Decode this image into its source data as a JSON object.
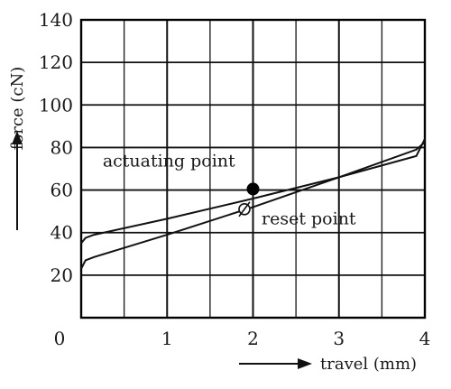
{
  "chart_data": {
    "type": "line",
    "xlabel": "travel (mm)",
    "ylabel": "force (cN)",
    "xlim": [
      0,
      4
    ],
    "ylim": [
      0,
      140
    ],
    "x_ticks": [
      0,
      1,
      2,
      3,
      4
    ],
    "y_ticks": [
      20,
      40,
      60,
      80,
      100,
      120,
      140
    ],
    "origin_label": "0",
    "grid": true,
    "grid_major_x": [
      0,
      1,
      2,
      3,
      4
    ],
    "grid_minor_x": [
      0.5,
      1.5,
      2.5,
      3.5
    ],
    "grid_major_y": [
      20,
      40,
      60,
      80,
      100,
      120,
      140
    ],
    "grid_minor_y": [],
    "series": [
      {
        "points": [
          [
            0,
            35
          ],
          [
            0.05,
            37.5
          ],
          [
            0.15,
            39
          ],
          [
            1,
            46.5
          ],
          [
            2,
            56
          ],
          [
            3,
            66
          ],
          [
            3.9,
            76
          ],
          [
            4,
            84
          ]
        ]
      },
      {
        "points": [
          [
            0,
            23
          ],
          [
            0.05,
            27
          ],
          [
            0.15,
            28.5
          ],
          [
            1,
            39
          ],
          [
            2,
            52
          ],
          [
            3,
            66
          ],
          [
            3.9,
            79
          ],
          [
            4,
            82.5
          ]
        ]
      }
    ],
    "markers": [
      {
        "x": 2,
        "y": 60.5,
        "style": "filled"
      },
      {
        "x": 1.9,
        "y": 51,
        "style": "open-slashed"
      }
    ],
    "annotations": [
      {
        "text": "actuating point",
        "x": 0.25,
        "y": 71
      },
      {
        "text": "reset point",
        "x": 2.1,
        "y": 44
      }
    ]
  }
}
